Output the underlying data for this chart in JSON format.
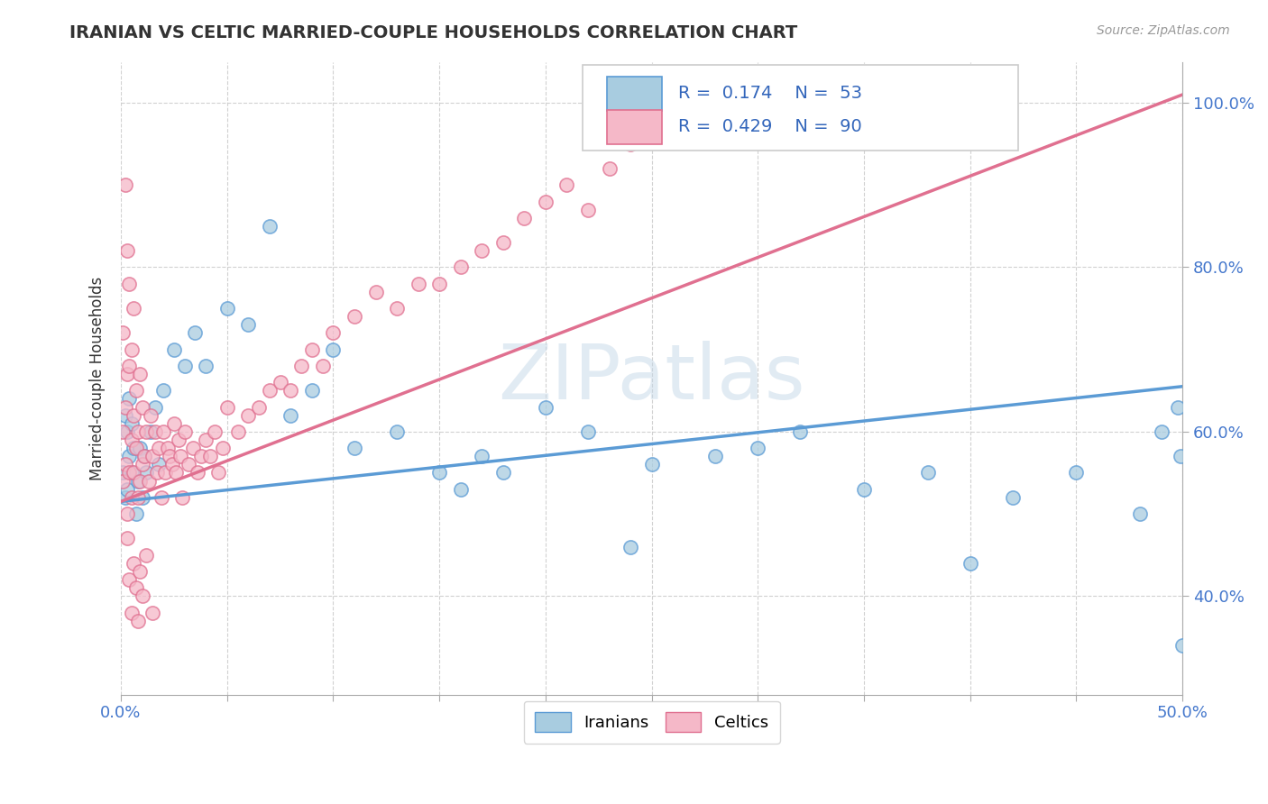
{
  "title": "IRANIAN VS CELTIC MARRIED-COUPLE HOUSEHOLDS CORRELATION CHART",
  "source": "Source: ZipAtlas.com",
  "ylabel": "Married-couple Households",
  "legend_iranians": "Iranians",
  "legend_celtics": "Celtics",
  "iranians_R": "0.174",
  "iranians_N": "53",
  "celtics_R": "0.429",
  "celtics_N": "90",
  "color_iranians_fill": "#a8cce0",
  "color_iranians_edge": "#5b9bd5",
  "color_celtics_fill": "#f5b8c8",
  "color_celtics_edge": "#e07090",
  "color_line_iran": "#5b9bd5",
  "color_line_celtic": "#e07090",
  "watermark": "ZIPatlas",
  "xlim": [
    0.0,
    0.5
  ],
  "ylim": [
    0.28,
    1.05
  ],
  "iran_line_x0": 0.0,
  "iran_line_y0": 0.515,
  "iran_line_x1": 0.5,
  "iran_line_y1": 0.655,
  "celtic_line_x0": 0.0,
  "celtic_line_y0": 0.515,
  "celtic_line_x1": 0.5,
  "celtic_line_y1": 1.01,
  "yticks": [
    0.4,
    0.6,
    0.8,
    1.0
  ],
  "iran_scatter_x": [
    0.001,
    0.002,
    0.002,
    0.003,
    0.003,
    0.004,
    0.004,
    0.005,
    0.005,
    0.006,
    0.007,
    0.008,
    0.009,
    0.01,
    0.011,
    0.012,
    0.014,
    0.016,
    0.018,
    0.02,
    0.025,
    0.03,
    0.035,
    0.04,
    0.05,
    0.06,
    0.07,
    0.08,
    0.09,
    0.1,
    0.11,
    0.13,
    0.15,
    0.17,
    0.2,
    0.22,
    0.25,
    0.28,
    0.3,
    0.32,
    0.35,
    0.38,
    0.4,
    0.42,
    0.45,
    0.48,
    0.49,
    0.498,
    0.499,
    0.5,
    0.16,
    0.18,
    0.24
  ],
  "iran_scatter_y": [
    0.55,
    0.52,
    0.62,
    0.6,
    0.53,
    0.57,
    0.64,
    0.55,
    0.61,
    0.58,
    0.5,
    0.54,
    0.58,
    0.52,
    0.57,
    0.55,
    0.6,
    0.63,
    0.56,
    0.65,
    0.7,
    0.68,
    0.72,
    0.68,
    0.75,
    0.73,
    0.85,
    0.62,
    0.65,
    0.7,
    0.58,
    0.6,
    0.55,
    0.57,
    0.63,
    0.6,
    0.56,
    0.57,
    0.58,
    0.6,
    0.53,
    0.55,
    0.44,
    0.52,
    0.55,
    0.5,
    0.6,
    0.63,
    0.57,
    0.34,
    0.53,
    0.55,
    0.46
  ],
  "celtic_scatter_x": [
    0.001,
    0.001,
    0.001,
    0.002,
    0.002,
    0.002,
    0.003,
    0.003,
    0.003,
    0.004,
    0.004,
    0.004,
    0.005,
    0.005,
    0.005,
    0.006,
    0.006,
    0.006,
    0.007,
    0.007,
    0.008,
    0.008,
    0.009,
    0.009,
    0.01,
    0.01,
    0.011,
    0.012,
    0.013,
    0.014,
    0.015,
    0.016,
    0.017,
    0.018,
    0.019,
    0.02,
    0.021,
    0.022,
    0.023,
    0.024,
    0.025,
    0.026,
    0.027,
    0.028,
    0.029,
    0.03,
    0.032,
    0.034,
    0.036,
    0.038,
    0.04,
    0.042,
    0.044,
    0.046,
    0.048,
    0.05,
    0.055,
    0.06,
    0.065,
    0.07,
    0.075,
    0.08,
    0.085,
    0.09,
    0.095,
    0.1,
    0.11,
    0.12,
    0.13,
    0.14,
    0.15,
    0.16,
    0.17,
    0.18,
    0.19,
    0.2,
    0.21,
    0.22,
    0.23,
    0.24,
    0.003,
    0.004,
    0.005,
    0.006,
    0.007,
    0.008,
    0.009,
    0.01,
    0.012,
    0.015
  ],
  "celtic_scatter_y": [
    0.54,
    0.6,
    0.72,
    0.56,
    0.63,
    0.9,
    0.5,
    0.67,
    0.82,
    0.55,
    0.68,
    0.78,
    0.52,
    0.59,
    0.7,
    0.55,
    0.62,
    0.75,
    0.58,
    0.65,
    0.52,
    0.6,
    0.54,
    0.67,
    0.56,
    0.63,
    0.57,
    0.6,
    0.54,
    0.62,
    0.57,
    0.6,
    0.55,
    0.58,
    0.52,
    0.6,
    0.55,
    0.58,
    0.57,
    0.56,
    0.61,
    0.55,
    0.59,
    0.57,
    0.52,
    0.6,
    0.56,
    0.58,
    0.55,
    0.57,
    0.59,
    0.57,
    0.6,
    0.55,
    0.58,
    0.63,
    0.6,
    0.62,
    0.63,
    0.65,
    0.66,
    0.65,
    0.68,
    0.7,
    0.68,
    0.72,
    0.74,
    0.77,
    0.75,
    0.78,
    0.78,
    0.8,
    0.82,
    0.83,
    0.86,
    0.88,
    0.9,
    0.87,
    0.92,
    0.95,
    0.47,
    0.42,
    0.38,
    0.44,
    0.41,
    0.37,
    0.43,
    0.4,
    0.45,
    0.38
  ]
}
